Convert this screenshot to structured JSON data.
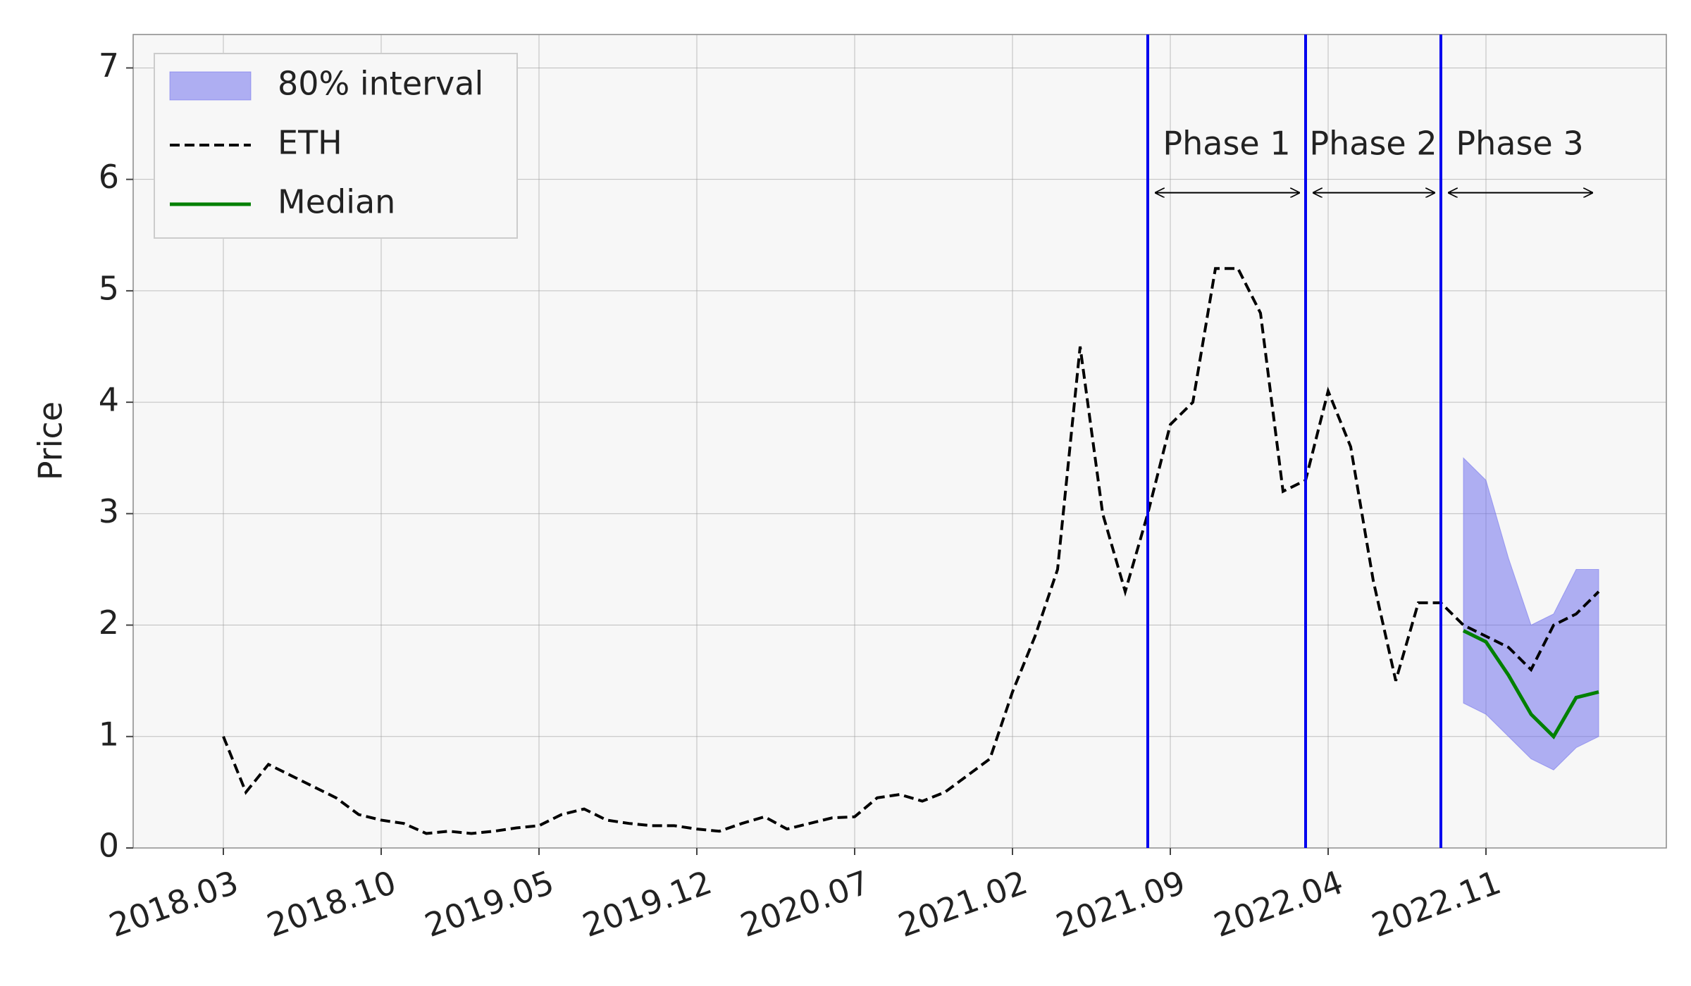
{
  "chart_data": {
    "type": "line",
    "ylabel": "Price",
    "x": [
      "2018.03",
      "2018.04",
      "2018.05",
      "2018.06",
      "2018.07",
      "2018.08",
      "2018.09",
      "2018.10",
      "2018.11",
      "2018.12",
      "2019.01",
      "2019.02",
      "2019.03",
      "2019.04",
      "2019.05",
      "2019.06",
      "2019.07",
      "2019.08",
      "2019.09",
      "2019.10",
      "2019.11",
      "2019.12",
      "2020.01",
      "2020.02",
      "2020.03",
      "2020.04",
      "2020.05",
      "2020.06",
      "2020.07",
      "2020.08",
      "2020.09",
      "2020.10",
      "2020.11",
      "2020.12",
      "2021.01",
      "2021.02",
      "2021.03",
      "2021.04",
      "2021.05",
      "2021.06",
      "2021.07",
      "2021.08",
      "2021.09",
      "2021.10",
      "2021.11",
      "2021.12",
      "2022.01",
      "2022.02",
      "2022.03",
      "2022.04",
      "2022.05",
      "2022.06",
      "2022.07",
      "2022.08",
      "2022.09",
      "2022.10",
      "2022.11",
      "2022.12",
      "2023.01",
      "2023.02",
      "2023.03",
      "2023.04"
    ],
    "series": [
      {
        "name": "ETH",
        "color": "#000000",
        "style": "dashed",
        "values": [
          1.0,
          0.5,
          0.75,
          0.65,
          0.55,
          0.45,
          0.3,
          0.25,
          0.22,
          0.13,
          0.15,
          0.13,
          0.15,
          0.18,
          0.2,
          0.3,
          0.35,
          0.25,
          0.22,
          0.2,
          0.2,
          0.17,
          0.15,
          0.22,
          0.28,
          0.17,
          0.22,
          0.27,
          0.28,
          0.45,
          0.48,
          0.42,
          0.5,
          0.65,
          0.8,
          1.4,
          1.9,
          2.5,
          4.5,
          3.0,
          2.3,
          3.0,
          3.8,
          4.0,
          5.2,
          5.2,
          4.8,
          3.2,
          3.3,
          4.1,
          3.6,
          2.4,
          1.5,
          2.2,
          2.2,
          2.0,
          1.9,
          1.8,
          1.6,
          2.0,
          2.1,
          2.3
        ]
      },
      {
        "name": "Median",
        "color": "#008000",
        "style": "solid",
        "values": [
          null,
          null,
          null,
          null,
          null,
          null,
          null,
          null,
          null,
          null,
          null,
          null,
          null,
          null,
          null,
          null,
          null,
          null,
          null,
          null,
          null,
          null,
          null,
          null,
          null,
          null,
          null,
          null,
          null,
          null,
          null,
          null,
          null,
          null,
          null,
          null,
          null,
          null,
          null,
          null,
          null,
          null,
          null,
          null,
          null,
          null,
          null,
          null,
          null,
          null,
          null,
          null,
          null,
          null,
          null,
          1.95,
          1.85,
          1.55,
          1.2,
          1.0,
          1.35,
          1.4
        ]
      }
    ],
    "band": {
      "name": "80% interval",
      "color": "#6666ee",
      "lower": [
        null,
        null,
        null,
        null,
        null,
        null,
        null,
        null,
        null,
        null,
        null,
        null,
        null,
        null,
        null,
        null,
        null,
        null,
        null,
        null,
        null,
        null,
        null,
        null,
        null,
        null,
        null,
        null,
        null,
        null,
        null,
        null,
        null,
        null,
        null,
        null,
        null,
        null,
        null,
        null,
        null,
        null,
        null,
        null,
        null,
        null,
        null,
        null,
        null,
        null,
        null,
        null,
        null,
        null,
        null,
        1.3,
        1.2,
        1.0,
        0.8,
        0.7,
        0.9,
        1.0
      ],
      "upper": [
        null,
        null,
        null,
        null,
        null,
        null,
        null,
        null,
        null,
        null,
        null,
        null,
        null,
        null,
        null,
        null,
        null,
        null,
        null,
        null,
        null,
        null,
        null,
        null,
        null,
        null,
        null,
        null,
        null,
        null,
        null,
        null,
        null,
        null,
        null,
        null,
        null,
        null,
        null,
        null,
        null,
        null,
        null,
        null,
        null,
        null,
        null,
        null,
        null,
        null,
        null,
        null,
        null,
        null,
        null,
        3.5,
        3.3,
        2.6,
        2.0,
        2.1,
        2.5,
        2.5
      ]
    },
    "vlines": {
      "color": "#0000ee",
      "x": [
        "2021.08",
        "2022.03",
        "2022.09"
      ]
    },
    "phases": [
      {
        "text": "Phase 1",
        "from": "2021.08",
        "to": "2022.03"
      },
      {
        "text": "Phase 2",
        "from": "2022.03",
        "to": "2022.09"
      },
      {
        "text": "Phase 3",
        "from": "2022.09",
        "to": "2023.04"
      }
    ],
    "xlim": [
      "2017.11",
      "2023.07"
    ],
    "xticks": [
      "2018.03",
      "2018.10",
      "2019.05",
      "2019.12",
      "2020.07",
      "2021.02",
      "2021.09",
      "2022.04",
      "2022.11"
    ],
    "ylim": [
      0,
      7.3
    ],
    "yticks": [
      0,
      1,
      2,
      3,
      4,
      5,
      6,
      7
    ],
    "grid": true,
    "legend": "upper left"
  }
}
